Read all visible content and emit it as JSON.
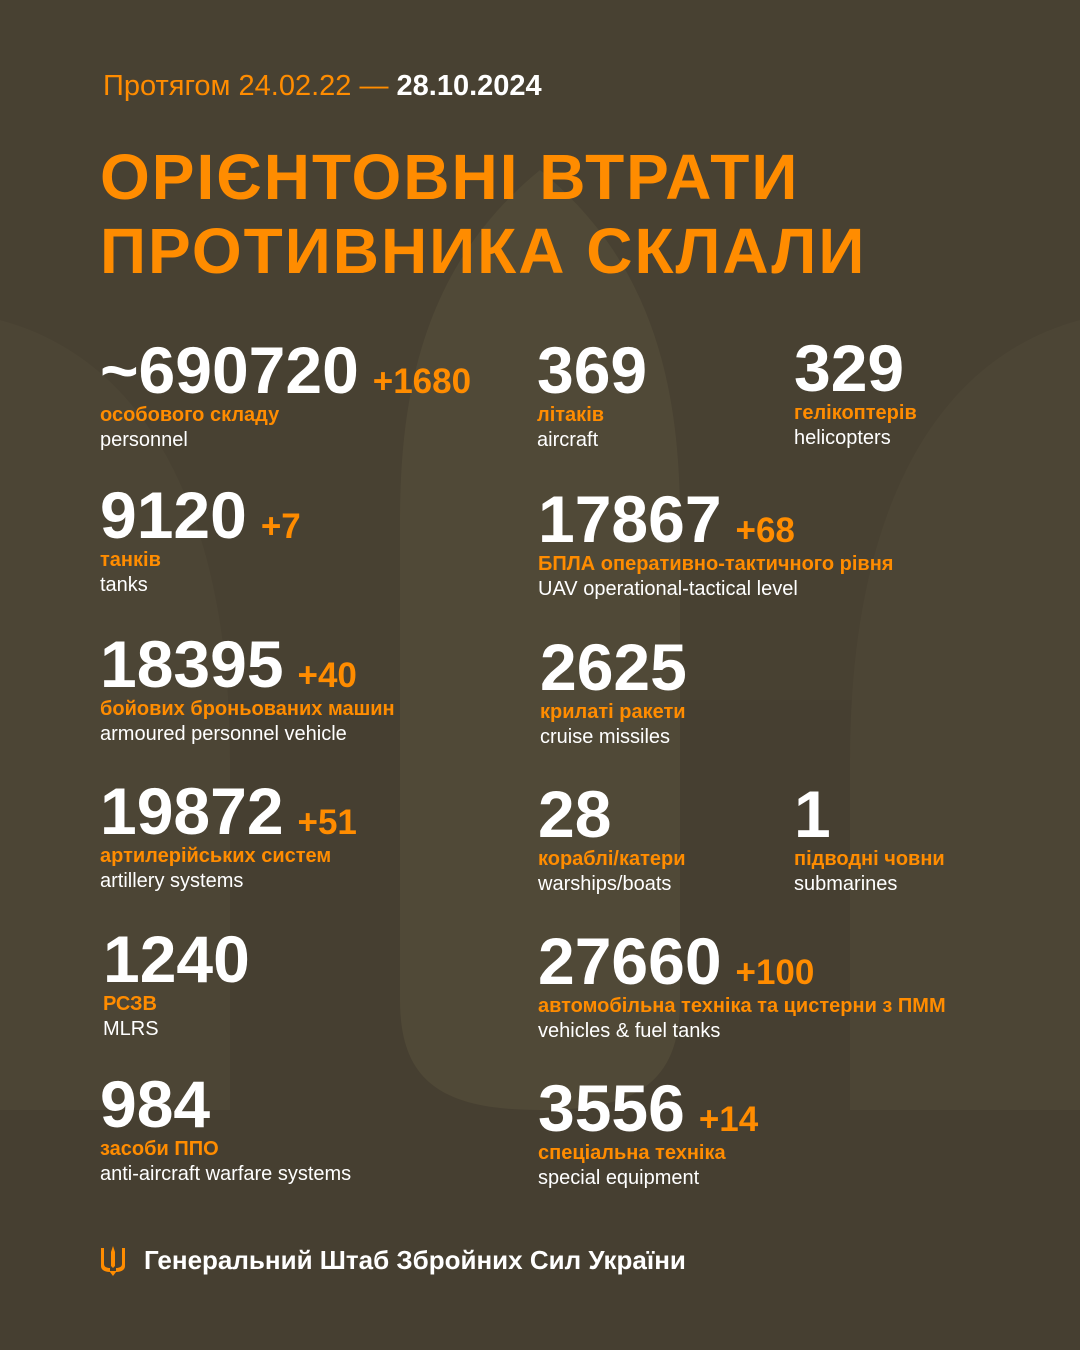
{
  "header": {
    "period_prefix": "Протягом 24.02.22 —",
    "period_end": "28.10.2024",
    "title_line1": "ОРІЄНТОВНІ ВТРАТИ",
    "title_line2": "ПРОТИВНИКА СКЛАЛИ"
  },
  "stats": [
    {
      "value": "~690720",
      "delta": "+1680",
      "ua": "особового складу",
      "en": "personnel"
    },
    {
      "value": "369",
      "delta": "",
      "ua": "літаків",
      "en": "aircraft"
    },
    {
      "value": "329",
      "delta": "",
      "ua": "гелікоптерів",
      "en": "helicopters"
    },
    {
      "value": "9120",
      "delta": "+7",
      "ua": "танків",
      "en": "tanks"
    },
    {
      "value": "17867",
      "delta": "+68",
      "ua": "БПЛА оперативно-тактичного рівня",
      "en": "UAV operational-tactical level"
    },
    {
      "value": "18395",
      "delta": "+40",
      "ua": "бойових броньованих машин",
      "en": "armoured personnel vehicle"
    },
    {
      "value": "2625",
      "delta": "",
      "ua": "крилаті ракети",
      "en": "cruise missiles"
    },
    {
      "value": "19872",
      "delta": "+51",
      "ua": "артилерійських систем",
      "en": "artillery systems"
    },
    {
      "value": "28",
      "delta": "",
      "ua": "кораблі/катери",
      "en": "warships/boats"
    },
    {
      "value": "1",
      "delta": "",
      "ua": "підводні човни",
      "en": "submarines"
    },
    {
      "value": "1240",
      "delta": "",
      "ua": "РСЗВ",
      "en": "MLRS"
    },
    {
      "value": "27660",
      "delta": "+100",
      "ua": "автомобільна техніка та цистерни з ПММ",
      "en": "vehicles & fuel tanks"
    },
    {
      "value": "984",
      "delta": "",
      "ua": "засоби ППО",
      "en": "anti-aircraft warfare systems"
    },
    {
      "value": "3556",
      "delta": "+14",
      "ua": "спеціальна техніка",
      "en": "special equipment"
    }
  ],
  "footer": {
    "org": "Генеральний Штаб Збройних Сил України",
    "emblem_icon": "trident-icon"
  },
  "colors": {
    "background": "#463f31",
    "accent": "#ff8c00",
    "text": "#ffffff"
  }
}
